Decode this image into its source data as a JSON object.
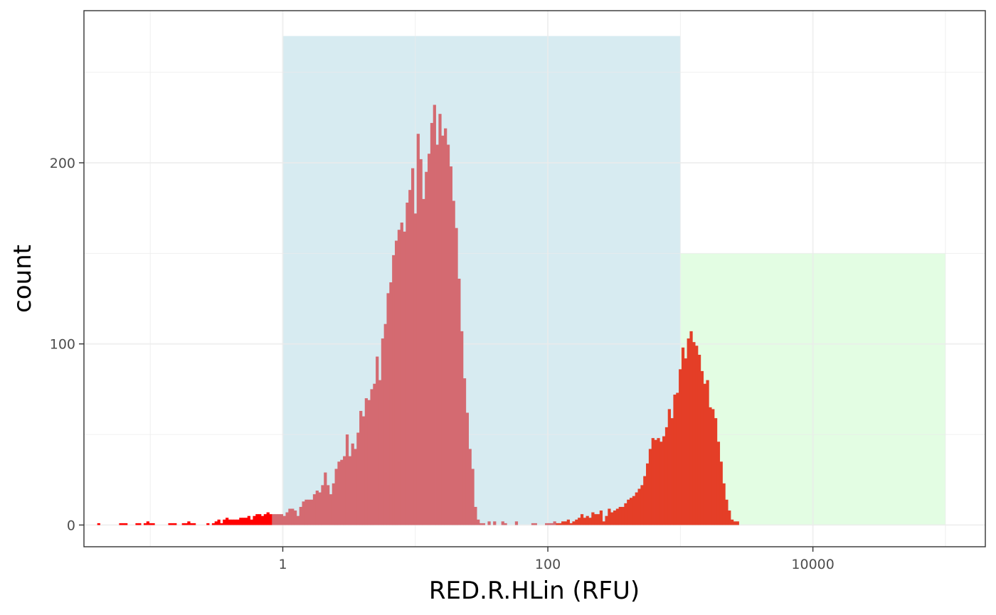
{
  "chart_data": {
    "type": "bar",
    "xlabel": "RED.R.HLin (RFU)",
    "ylabel": "count",
    "x_scale": "log10",
    "xlim": [
      0.0316,
      200000
    ],
    "ylim": [
      -12,
      284
    ],
    "x_ticks": [
      1,
      100,
      10000
    ],
    "x_tick_labels": [
      "1",
      "100",
      "10000"
    ],
    "x_minor_gridlines": [
      0.1,
      10,
      1000,
      100000
    ],
    "y_ticks": [
      0,
      100,
      200
    ],
    "y_tick_labels": [
      "0",
      "100",
      "200"
    ],
    "y_minor_gridlines": [
      50,
      150,
      250
    ],
    "grid": true,
    "theme": "black-and-white",
    "shaded_regions": [
      {
        "x_from": 1,
        "x_to": 1000,
        "y_from": 0,
        "y_to": 270,
        "color": "#add8e6"
      },
      {
        "x_from": 1000,
        "x_to": 100000,
        "y_from": 0,
        "y_to": 150,
        "color": "#ccffcc"
      }
    ],
    "colors": {
      "below_gate": "#ff0000",
      "gate_1": "#d46a71",
      "gate_2": "#e43e27",
      "shade_1": "#d7ebf1",
      "shade_2": "#e3fde3",
      "gridline": "#ebebeb",
      "panel_border": "#333333"
    },
    "bin_width_log10": 0.0206,
    "bin_start_log10": -1.4,
    "series": [
      {
        "color_key": "below_gate",
        "counts": [
          1,
          0,
          0,
          0,
          0,
          0,
          0,
          0,
          1,
          1,
          1,
          0,
          0,
          0,
          1,
          1,
          0,
          1,
          2,
          1,
          1,
          0,
          0,
          0,
          0,
          0,
          1,
          1,
          1,
          0,
          0,
          1,
          1,
          2,
          1,
          1,
          0,
          0,
          0,
          0,
          1,
          0,
          1,
          2,
          3,
          1,
          3,
          4,
          3,
          3,
          3,
          3,
          4,
          4,
          4,
          5,
          3,
          5,
          6,
          6,
          5,
          6,
          7,
          6
        ]
      },
      {
        "color_key": "gate_1",
        "counts": [
          6,
          6,
          6,
          6,
          5,
          7,
          9,
          9,
          8,
          5,
          10,
          13,
          14,
          14,
          14,
          17,
          19,
          18,
          22,
          29,
          22,
          17,
          23,
          31,
          35,
          36,
          38,
          50,
          38,
          45,
          42,
          51,
          63,
          60,
          70,
          69,
          75,
          78,
          93,
          80,
          103,
          111,
          128,
          134,
          149,
          157,
          163,
          167,
          162,
          178,
          185,
          197,
          172,
          216,
          202,
          180,
          195,
          205,
          222,
          232,
          210,
          227,
          215,
          219,
          210,
          198,
          179,
          164,
          136,
          107,
          81,
          62,
          42,
          31,
          10,
          3,
          1,
          1,
          0,
          2,
          0,
          2,
          0,
          0,
          2,
          1,
          0,
          0,
          0,
          2,
          0,
          0,
          0,
          0,
          0,
          1,
          1,
          0,
          0,
          0,
          1,
          1,
          1,
          2
        ]
      },
      {
        "color_key": "gate_2",
        "counts": [
          1,
          1,
          2,
          2,
          3,
          1,
          2,
          3,
          4,
          6,
          4,
          5,
          4,
          7,
          6,
          6,
          8,
          2,
          5,
          9,
          7,
          8,
          9,
          10,
          10,
          12,
          14,
          15,
          16,
          18,
          20,
          22,
          27,
          34,
          42,
          48,
          47,
          48,
          46,
          49,
          54,
          64,
          59,
          72,
          73,
          86,
          98,
          92,
          103,
          107,
          101,
          99,
          94,
          85,
          78,
          80,
          65,
          64,
          59,
          46,
          35,
          23,
          14,
          8,
          3,
          2,
          2
        ]
      }
    ]
  }
}
